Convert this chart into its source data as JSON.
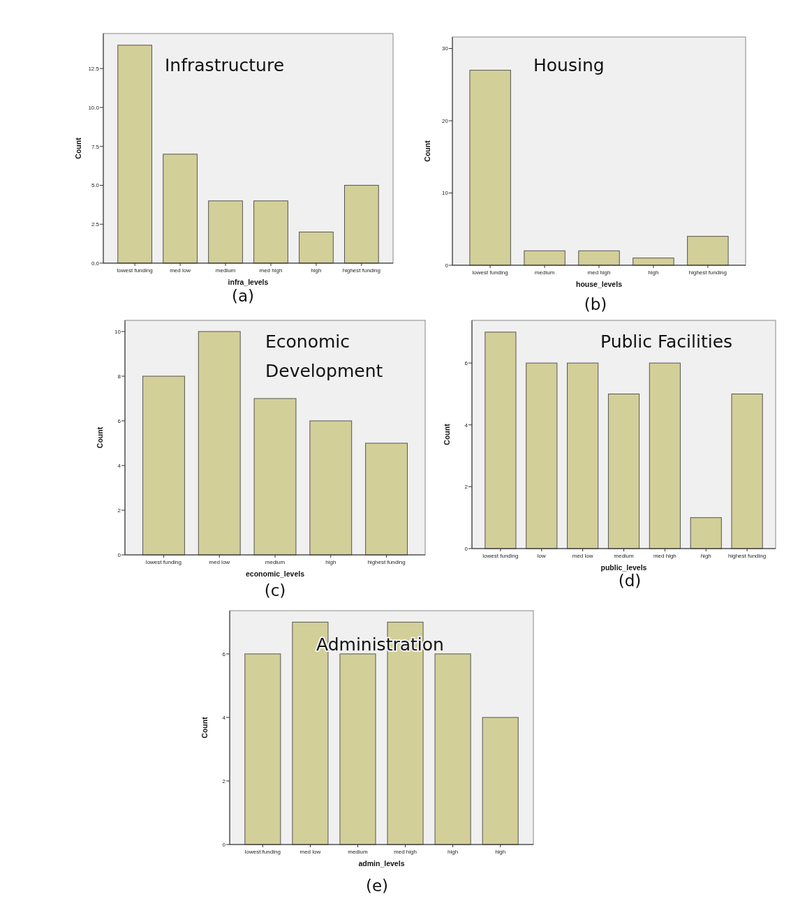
{
  "chart_data": [
    {
      "type": "bar",
      "title": "Infrastructure",
      "xlabel": "infra_levels",
      "ylabel": "Count",
      "categories": [
        "lowest funding",
        "med low",
        "medium",
        "med high",
        "high",
        "highest funding"
      ],
      "values": [
        14,
        7,
        4,
        4,
        2,
        5
      ],
      "color": "#d3cf98",
      "ylim": [
        0,
        14.75
      ],
      "yticks": [
        {
          "value": 0,
          "label": "0.0"
        },
        2.5,
        {
          "value": 5,
          "label": "5.0"
        },
        7.5,
        {
          "value": 10,
          "label": "10.0"
        },
        12.5
      ],
      "annotations": [
        "(a)"
      ]
    },
    {
      "type": "bar",
      "title": "Housing",
      "xlabel": "house_levels",
      "ylabel": "Count",
      "categories": [
        "lowest funding",
        "medium",
        "med high",
        "high",
        "highest funding"
      ],
      "values": [
        27,
        2,
        2,
        1,
        4
      ],
      "color": "#d3cf98",
      "ylim": [
        0,
        31.6
      ],
      "yticks": [
        0,
        10,
        20,
        30
      ],
      "annotations": [
        "(b)"
      ]
    },
    {
      "type": "bar",
      "title": "Economic Development",
      "xlabel": "economic_levels",
      "ylabel": "Count",
      "categories": [
        "lowest funding",
        "med low",
        "medium",
        "high",
        "highest funding"
      ],
      "values": [
        8,
        10,
        7,
        6,
        5
      ],
      "color": "#d3cf98",
      "ylim": [
        0,
        10.5
      ],
      "yticks": [
        0,
        2,
        4,
        6,
        8,
        10
      ],
      "annotations": [
        "(c)"
      ]
    },
    {
      "type": "bar",
      "title": "Public Facilities",
      "xlabel": "public_levels",
      "ylabel": "Count",
      "categories": [
        "lowest funding",
        "low",
        "med low",
        "medium",
        "med high",
        "high",
        "highest funding"
      ],
      "values": [
        7,
        6,
        6,
        5,
        6,
        1,
        5
      ],
      "color": "#d3cf98",
      "ylim": [
        0,
        7.38
      ],
      "yticks": [
        0,
        2,
        4,
        6
      ],
      "annotations": [
        "(d)"
      ]
    },
    {
      "type": "bar",
      "title": "Administration",
      "xlabel": "admin_levels",
      "ylabel": "Count",
      "categories": [
        "lowest funding",
        "med low",
        "medium",
        "med high",
        "high",
        "high"
      ],
      "values": [
        6,
        7,
        6,
        7,
        6,
        4
      ],
      "color": "#d3cf98",
      "ylim": [
        0,
        7.36
      ],
      "yticks": [
        0,
        2,
        4,
        6
      ],
      "annotations": [
        "(e)"
      ]
    }
  ]
}
